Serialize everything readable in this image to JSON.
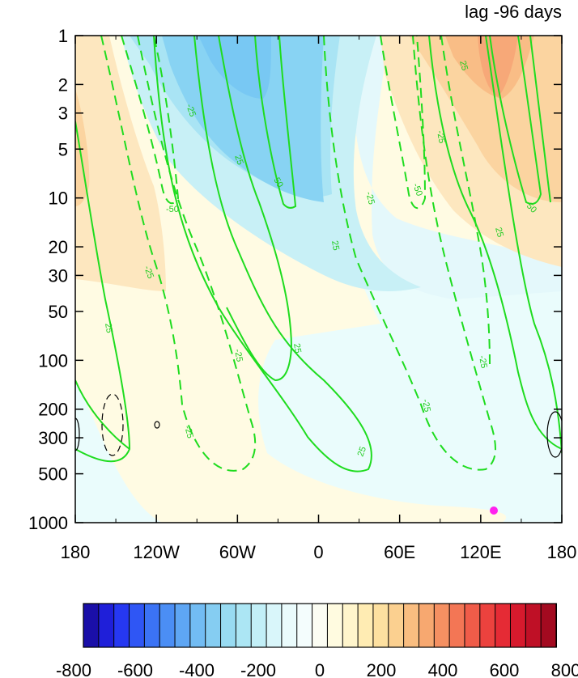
{
  "chart_data": {
    "type": "heatmap",
    "title": "lag -96 days",
    "xlabel": "",
    "ylabel": "",
    "x_ticks": [
      {
        "lon": -180,
        "label": "180"
      },
      {
        "lon": -120,
        "label": "120W"
      },
      {
        "lon": -60,
        "label": "60W"
      },
      {
        "lon": 0,
        "label": "0"
      },
      {
        "lon": 60,
        "label": "60E"
      },
      {
        "lon": 120,
        "label": "120E"
      },
      {
        "lon": 180,
        "label": "180"
      }
    ],
    "y_ticks": [
      {
        "p": 1,
        "label": "1"
      },
      {
        "p": 2,
        "label": "2"
      },
      {
        "p": 3,
        "label": "3"
      },
      {
        "p": 5,
        "label": "5"
      },
      {
        "p": 10,
        "label": "10"
      },
      {
        "p": 20,
        "label": "20"
      },
      {
        "p": 30,
        "label": "30"
      },
      {
        "p": 50,
        "label": "50"
      },
      {
        "p": 100,
        "label": "100"
      },
      {
        "p": 200,
        "label": "200"
      },
      {
        "p": 300,
        "label": "300"
      },
      {
        "p": 500,
        "label": "500"
      },
      {
        "p": 1000,
        "label": "1000"
      }
    ],
    "xlim": [
      -180,
      180
    ],
    "ylim": [
      1000,
      1
    ],
    "y_scale": "log",
    "colorbar": {
      "levels": [
        -800,
        -750,
        -700,
        -650,
        -600,
        -550,
        -500,
        -450,
        -400,
        -350,
        -300,
        -250,
        -200,
        -150,
        -100,
        -50,
        0,
        50,
        100,
        150,
        200,
        250,
        300,
        350,
        400,
        450,
        500,
        550,
        600,
        650,
        700,
        750,
        800
      ],
      "tick_labels": [
        "-800",
        "-600",
        "-400",
        "-200",
        "0",
        "200",
        "400",
        "600",
        "800"
      ],
      "colors": [
        "#1a0fa8",
        "#1f1fd9",
        "#2638f2",
        "#2f56f5",
        "#3b73f5",
        "#4b8ef5",
        "#5ea6f4",
        "#72bcf3",
        "#85cdf2",
        "#98dbf2",
        "#acE6f4",
        "#c2eff7",
        "#d9f6fa",
        "#eafbfc",
        "#f4fdfd",
        "#fcfdf3",
        "#fffbe0",
        "#fff5cc",
        "#ffecb3",
        "#fde0a0",
        "#fbd090",
        "#f9bd80",
        "#f7a870",
        "#f59062",
        "#f37655",
        "#f05c49",
        "#ec423e",
        "#e52b35",
        "#d61a2d",
        "#bf1026",
        "#a30a20"
      ]
    },
    "shaded_regions": [
      {
        "name": "blue-core",
        "value": -350
      },
      {
        "name": "blue-mid",
        "value": -250
      },
      {
        "name": "blue-outer",
        "value": -150
      },
      {
        "name": "blue-faint",
        "value": -50
      },
      {
        "name": "orange-core",
        "value": 350
      },
      {
        "name": "orange-mid",
        "value": 250
      },
      {
        "name": "orange-outer",
        "value": 150
      },
      {
        "name": "yellow-faint",
        "value": 50
      }
    ],
    "contour_labels": [
      "-25",
      "25",
      "-50",
      "50"
    ],
    "marker": {
      "lon": 130,
      "p": 850,
      "color": "#ff22ee"
    }
  }
}
